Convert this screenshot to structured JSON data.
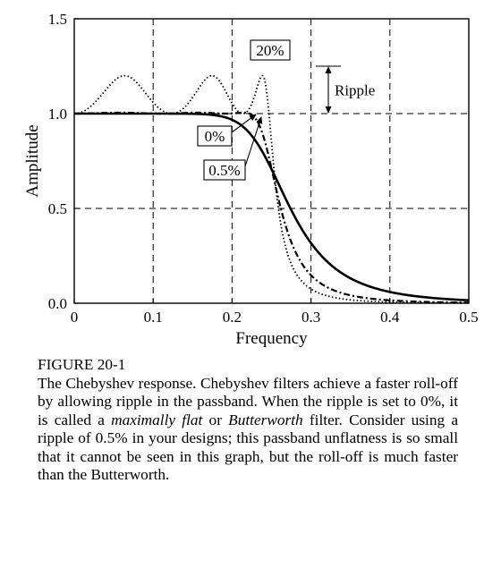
{
  "chart_data": {
    "type": "line",
    "title": "",
    "xlabel": "Frequency",
    "ylabel": "Amplitude",
    "xlim": [
      0,
      0.5
    ],
    "ylim": [
      0,
      1.5
    ],
    "xticks": [
      "0",
      "0.1",
      "0.2",
      "0.3",
      "0.4",
      "0.5"
    ],
    "yticks": [
      "0.0",
      "0.5",
      "1.0",
      "1.5"
    ],
    "grid": true,
    "cutoff": 0.25,
    "series": [
      {
        "name": "0%",
        "ripple": 0,
        "style": "solid",
        "color": "#000000"
      },
      {
        "name": "0.5%",
        "ripple": 0.005,
        "style": "dashdot",
        "color": "#000000"
      },
      {
        "name": "20%",
        "ripple": 0.2,
        "style": "dotted",
        "color": "#000000"
      }
    ],
    "annotations": {
      "ripple_label": "Ripple"
    }
  },
  "caption": {
    "title": "FIGURE 20-1",
    "body_part1": "The Chebyshev response.  Chebyshev filters achieve a faster roll-off by allowing ripple in the passband. When the ripple is set to 0%, it is called a ",
    "body_em1": "maximally flat",
    "body_part2": " or ",
    "body_em2": "Butterworth",
    "body_part3": " filter. Consider using a ripple of 0.5% in your designs; this passband unflatness is so small that it cannot be seen in this graph, but the roll-off is much faster than the Butterworth."
  }
}
